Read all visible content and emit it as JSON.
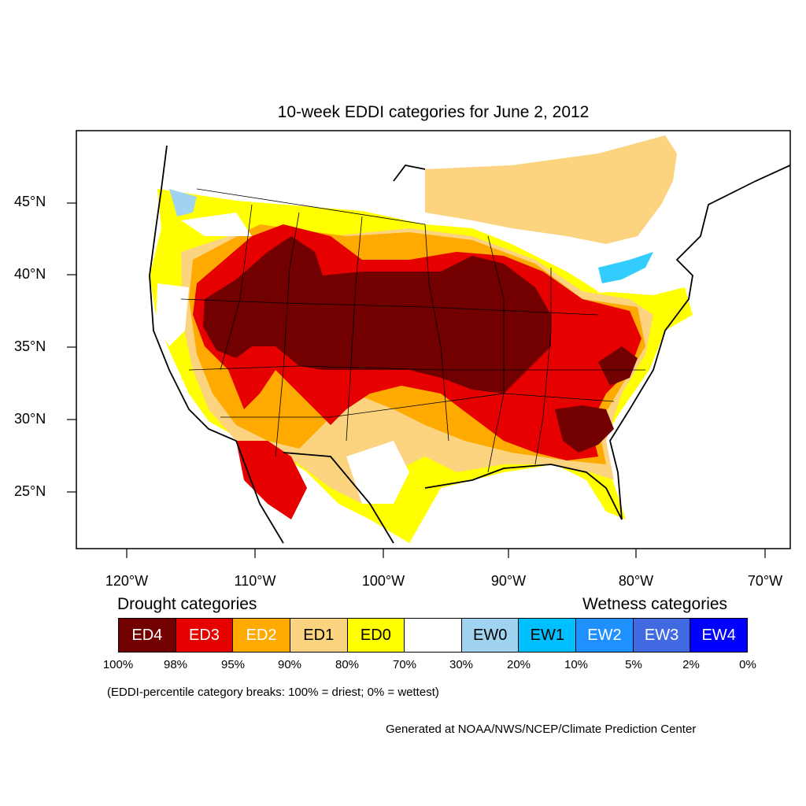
{
  "title": "10-week EDDI categories for June 2, 2012",
  "lat_labels": [
    "45°N",
    "40°N",
    "35°N",
    "30°N",
    "25°N"
  ],
  "lon_labels": [
    "120°W",
    "110°W",
    "100°W",
    "90°W",
    "80°W",
    "70°W"
  ],
  "legend": {
    "drought_heading": "Drought categories",
    "wetness_heading": "Wetness categories",
    "categories": [
      {
        "label": "ED4",
        "color": "#730000",
        "text_color": "#ffffff"
      },
      {
        "label": "ED3",
        "color": "#e60000",
        "text_color": "#ffffff"
      },
      {
        "label": "ED2",
        "color": "#ffaa00",
        "text_color": "#ffffff"
      },
      {
        "label": "ED1",
        "color": "#fcd37f",
        "text_color": "#000000"
      },
      {
        "label": "ED0",
        "color": "#ffff00",
        "text_color": "#000000"
      },
      {
        "label": "",
        "color": "#ffffff",
        "text_color": "#000000"
      },
      {
        "label": "EW0",
        "color": "#9fd3f0",
        "text_color": "#000000"
      },
      {
        "label": "EW1",
        "color": "#00bfff",
        "text_color": "#000000"
      },
      {
        "label": "EW2",
        "color": "#1e90ff",
        "text_color": "#ffffff"
      },
      {
        "label": "EW3",
        "color": "#4169e1",
        "text_color": "#ffffff"
      },
      {
        "label": "EW4",
        "color": "#0000ff",
        "text_color": "#ffffff"
      }
    ],
    "percent_breaks": [
      "100%",
      "98%",
      "95%",
      "90%",
      "80%",
      "70%",
      "30%",
      "20%",
      "10%",
      "5%",
      "2%",
      "0%"
    ]
  },
  "note": "(EDDI-percentile category breaks: 100% = driest; 0% = wettest)",
  "credit": "Generated at NOAA/NWS/NCEP/Climate Prediction Center"
}
